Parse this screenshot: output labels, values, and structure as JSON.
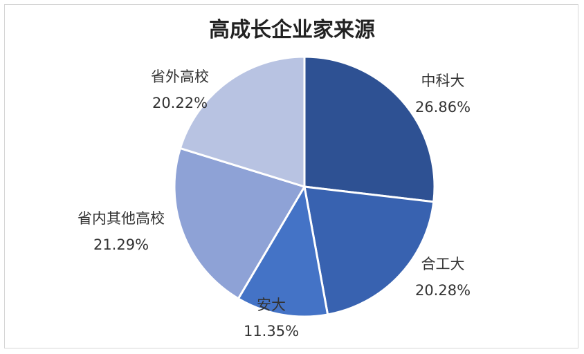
{
  "chart_data": {
    "type": "pie",
    "title": "高成长企业家来源",
    "slices": [
      {
        "label": "中科大",
        "value": 26.86,
        "value_text": "26.86%",
        "color": "#2e5193"
      },
      {
        "label": "合工大",
        "value": 20.28,
        "value_text": "20.28%",
        "color": "#3862b0"
      },
      {
        "label": "安大",
        "value": 11.35,
        "value_text": "11.35%",
        "color": "#4473c6"
      },
      {
        "label": "省内其他高校",
        "value": 21.29,
        "value_text": "21.29%",
        "color": "#8ea2d6"
      },
      {
        "label": "省外高校",
        "value": 20.22,
        "value_text": "20.22%",
        "color": "#b8c3e2"
      }
    ],
    "start": "12 o'clock",
    "direction": "clockwise",
    "legend": "none"
  }
}
